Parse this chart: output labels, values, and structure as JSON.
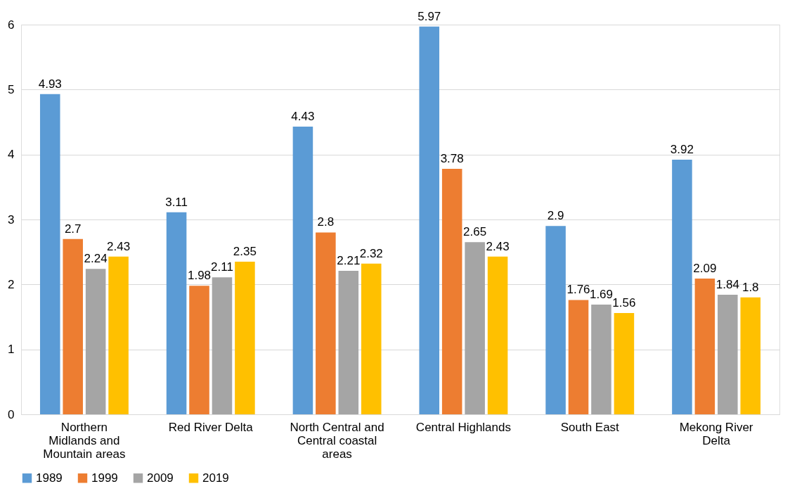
{
  "chart_data": {
    "type": "bar",
    "categories": [
      "Northern\nMidlands and\nMountain areas",
      "Red River Delta",
      "North Central and\nCentral coastal\nareas",
      "Central Highlands",
      "South East",
      "Mekong River\nDelta"
    ],
    "series": [
      {
        "name": "1989",
        "color": "#5b9bd5",
        "values": [
          4.93,
          3.11,
          4.43,
          5.97,
          2.9,
          3.92
        ]
      },
      {
        "name": "1999",
        "color": "#ed7d31",
        "values": [
          2.7,
          1.98,
          2.8,
          3.78,
          1.76,
          2.09
        ]
      },
      {
        "name": "2009",
        "color": "#a5a5a5",
        "values": [
          2.24,
          2.11,
          2.21,
          2.65,
          1.69,
          1.84
        ]
      },
      {
        "name": "2019",
        "color": "#ffc000",
        "values": [
          2.43,
          2.35,
          2.32,
          2.43,
          1.56,
          1.8
        ]
      }
    ],
    "ylim": [
      0,
      6
    ],
    "yticks": [
      0,
      1,
      2,
      3,
      4,
      5,
      6
    ],
    "grid": "y",
    "legend": "bottom",
    "data_labels": true
  }
}
